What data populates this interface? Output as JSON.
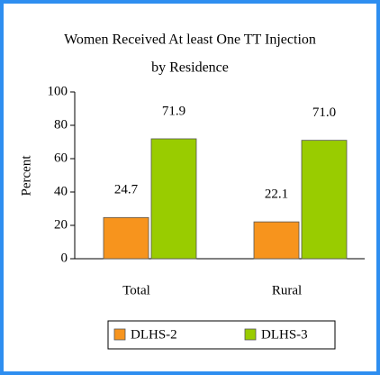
{
  "chart_data": {
    "type": "bar",
    "title": "Women Received At least One TT Injection",
    "subtitle": "by Residence",
    "y_label": "Percent",
    "categories": [
      "Total",
      "Rural"
    ],
    "series": [
      {
        "name": "DLHS-2",
        "color": "#f7941d",
        "values": [
          24.7,
          22.1
        ],
        "value_labels": [
          "24.7",
          "22.1"
        ]
      },
      {
        "name": "DLHS-3",
        "color": "#99cc00",
        "values": [
          71.9,
          71
        ],
        "value_labels": [
          "71.9",
          "71.0"
        ]
      }
    ],
    "ylim": [
      0,
      100
    ],
    "yticks": [
      0,
      20,
      40,
      60,
      80,
      100
    ],
    "grid": false
  }
}
